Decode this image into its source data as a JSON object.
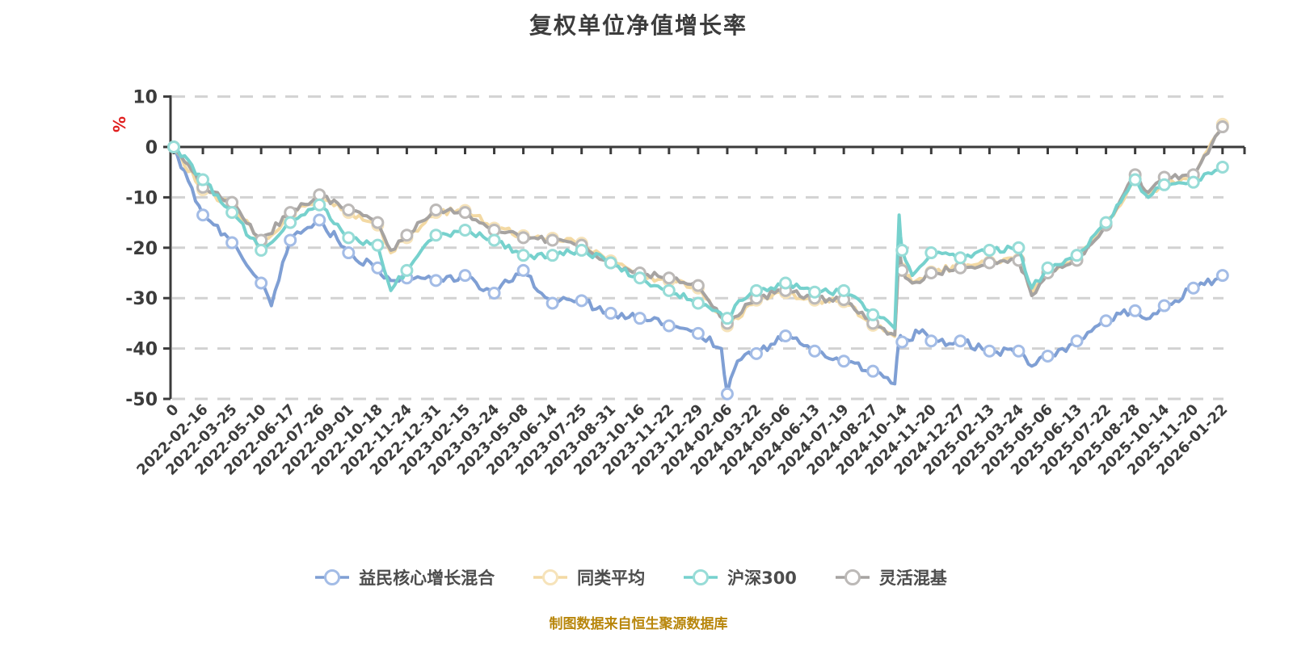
{
  "footer": {
    "note": "制图数据来自恒生聚源数据库"
  },
  "chart_data": {
    "type": "line",
    "title": "复权单位净值增长率",
    "unit_label": "%",
    "ylabel": "%",
    "xlabel": "",
    "ylim": [
      -50,
      10
    ],
    "y_ticks": [
      10,
      0,
      -10,
      -20,
      -30,
      -40,
      -50
    ],
    "grid": "dashed-horizontal",
    "legend_position": "bottom",
    "x_labels": [
      "0",
      "2022-02-16",
      "2022-03-25",
      "2022-05-10",
      "2022-06-17",
      "2022-07-26",
      "2022-09-01",
      "2022-10-18",
      "2022-11-24",
      "2022-12-31",
      "2023-02-15",
      "2023-03-24",
      "2023-05-08",
      "2023-06-14",
      "2023-07-25",
      "2023-08-31",
      "2023-10-16",
      "2023-11-22",
      "2023-12-29",
      "2024-02-06",
      "2024-03-22",
      "2024-05-06",
      "2024-06-13",
      "2024-07-19",
      "2024-08-27",
      "2024-10-14",
      "2024-11-20",
      "2024-12-27",
      "2025-02-13",
      "2025-03-24",
      "2025-05-06",
      "2025-06-13",
      "2025-07-22",
      "2025-08-28",
      "2025-10-14",
      "2025-11-20",
      "2026-01-22"
    ],
    "series": [
      {
        "name": "益民核心增长混合",
        "color": "#7f9fd4",
        "marker_color": "#a3bce6",
        "seed": 7,
        "noise": 1.0,
        "values": [
          0,
          -13.5,
          -19,
          -27,
          -18.5,
          -14.5,
          -21,
          -24,
          -26,
          -26.5,
          -25.5,
          -29,
          -24.5,
          -31,
          -30.5,
          -33,
          -34,
          -35.5,
          -37,
          -49,
          -41,
          -37.5,
          -40.5,
          -42.5,
          -44.5,
          -38.7,
          -38.5,
          -38.5,
          -40.5,
          -40.5,
          -41.5,
          -38.5,
          -34.5,
          -32.5,
          -31.5,
          -28,
          -25.5
        ],
        "extra_points": [
          [
            3.35,
            -31.5
          ],
          [
            4.6,
            -16
          ],
          [
            7.45,
            -26.5
          ],
          [
            18.8,
            -40
          ],
          [
            19.35,
            -42.5
          ],
          [
            24.75,
            -47
          ],
          [
            24.9,
            -38
          ],
          [
            25.7,
            -36.3
          ],
          [
            29.45,
            -43.5
          ],
          [
            33.5,
            -34
          ]
        ]
      },
      {
        "name": "同类平均",
        "color": "#f3d9a3",
        "marker_color": "#f6e3ba",
        "seed": 13,
        "noise": 0.75,
        "values": [
          0,
          -8.5,
          -11.5,
          -19,
          -13.5,
          -10,
          -13,
          -15.5,
          -18,
          -13,
          -12.6,
          -16.1,
          -17.6,
          -18.1,
          -19.1,
          -22.6,
          -25.5,
          -26.5,
          -28,
          -35.5,
          -30.4,
          -28.9,
          -30.4,
          -30.7,
          -35.4,
          -24.2,
          -24.8,
          -23.8,
          -22.8,
          -22.3,
          -24.8,
          -22.3,
          -15.2,
          -6.2,
          -6.8,
          -6.2,
          4.5
        ],
        "extra_points": [
          [
            7.45,
            -21
          ],
          [
            24.75,
            -37.6
          ],
          [
            24.9,
            -20.5
          ],
          [
            25.35,
            -27
          ],
          [
            29.45,
            -29
          ],
          [
            32.5,
            -11.5
          ],
          [
            33.45,
            -9.5
          ]
        ]
      },
      {
        "name": "沪深300",
        "color": "#76d1cd",
        "marker_color": "#97dcd7",
        "seed": 21,
        "noise": 0.75,
        "values": [
          0,
          -6.5,
          -13,
          -20.5,
          -15,
          -11.5,
          -18,
          -19.5,
          -24.5,
          -17.5,
          -16.5,
          -18.5,
          -21.5,
          -21.5,
          -20.5,
          -23,
          -26,
          -28.5,
          -31,
          -34,
          -28.5,
          -27,
          -28.8,
          -28.5,
          -33.3,
          -20.5,
          -21,
          -22,
          -20.5,
          -20,
          -24,
          -21.5,
          -15,
          -6.5,
          -7.5,
          -7,
          -4
        ],
        "extra_points": [
          [
            7.45,
            -28.5
          ],
          [
            19.4,
            -30.5
          ],
          [
            24.75,
            -36
          ],
          [
            24.9,
            -13.5
          ],
          [
            25.35,
            -25.5
          ],
          [
            29.45,
            -28
          ],
          [
            32.5,
            -11
          ],
          [
            33.45,
            -10
          ]
        ]
      },
      {
        "name": "灵活混基",
        "color": "#a6a3a1",
        "marker_color": "#bcb9b7",
        "seed": 33,
        "noise": 0.75,
        "values": [
          0,
          -8,
          -11,
          -18.5,
          -13,
          -9.5,
          -12.5,
          -15,
          -17.5,
          -12.5,
          -13,
          -16.5,
          -18,
          -18.5,
          -19.5,
          -23,
          -25,
          -26,
          -27.5,
          -35,
          -30,
          -28.5,
          -30,
          -30.3,
          -35,
          -24.5,
          -25,
          -24,
          -23,
          -22.5,
          -25,
          -22.5,
          -15.5,
          -5.5,
          -6,
          -5.5,
          4
        ],
        "extra_points": [
          [
            7.45,
            -20.5
          ],
          [
            24.75,
            -37.3
          ],
          [
            24.9,
            -20
          ],
          [
            25.35,
            -27
          ],
          [
            29.45,
            -29.5
          ],
          [
            32.5,
            -10.5
          ],
          [
            33.45,
            -9
          ]
        ]
      }
    ]
  }
}
